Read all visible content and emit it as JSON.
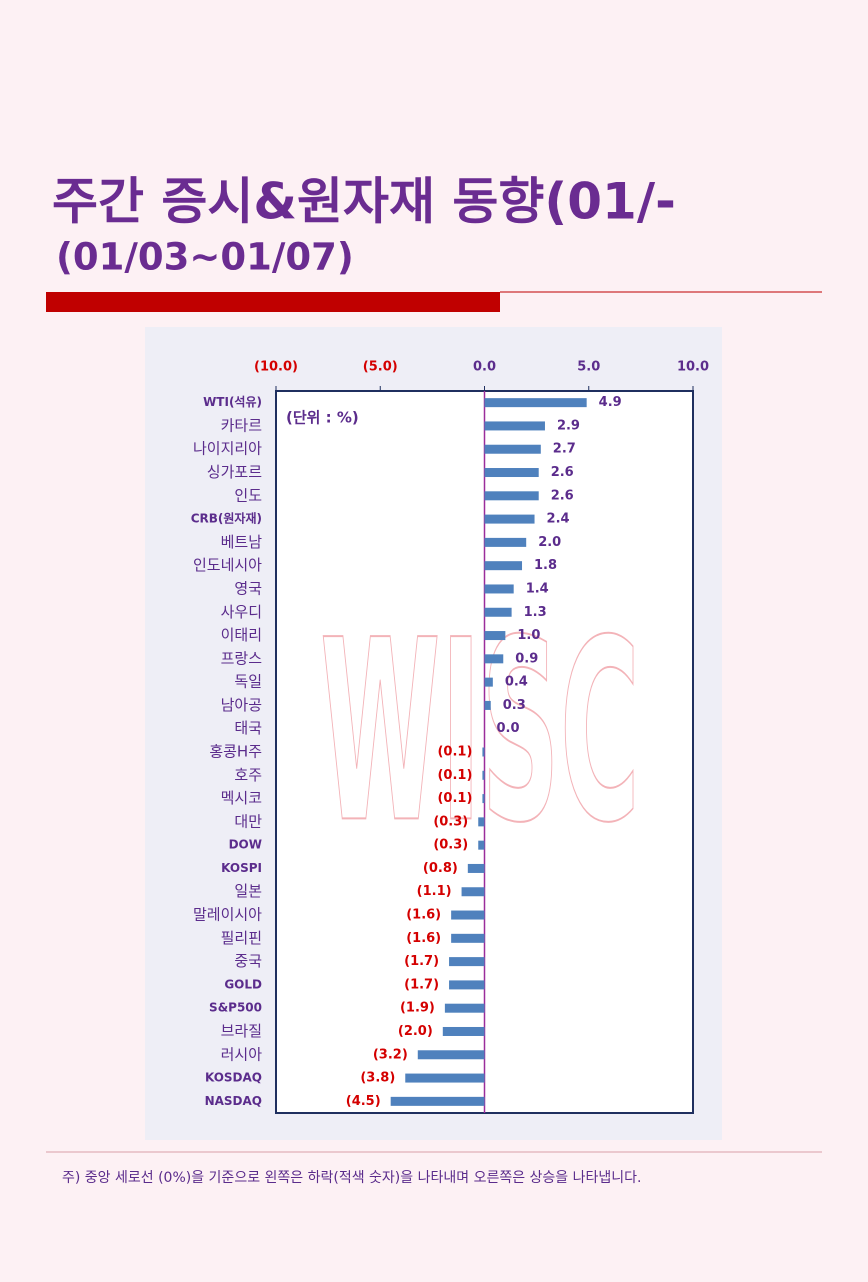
{
  "chart_data": {
    "type": "hbar",
    "title": "주간 증시&원자재 동향(01/-",
    "subtitle": "(01/03~01/07)",
    "unit_label": "(단위 : %)",
    "watermark": "WISC",
    "note": "주) 중앙 세로선 (0%)을 기준으로 왼쪽은 하락(적색 숫자)을 나타내며 오른쪽은 상승을 나타냅니다.",
    "categories": [
      "WTI(석유)",
      "카타르",
      "나이지리아",
      "싱가포르",
      "인도",
      "CRB(원자재)",
      "베트남",
      "인도네시아",
      "영국",
      "사우디",
      "이태리",
      "프랑스",
      "독일",
      "남아공",
      "태국",
      "홍콩H주",
      "호주",
      "멕시코",
      "대만",
      "DOW",
      "KOSPI",
      "일본",
      "말레이시아",
      "필리핀",
      "중국",
      "GOLD",
      "S&P500",
      "브라질",
      "러시아",
      "KOSDAQ",
      "NASDAQ"
    ],
    "values": [
      4.9,
      2.9,
      2.7,
      2.6,
      2.6,
      2.4,
      2.0,
      1.8,
      1.4,
      1.3,
      1.0,
      0.9,
      0.4,
      0.3,
      0.0,
      -0.1,
      -0.1,
      -0.1,
      -0.3,
      -0.3,
      -0.8,
      -1.1,
      -1.6,
      -1.6,
      -1.7,
      -1.7,
      -1.9,
      -2.0,
      -3.2,
      -3.8,
      -4.5
    ],
    "value_labels": [
      "4.9",
      "2.9",
      "2.7",
      "2.6",
      "2.6",
      "2.4",
      "2.0",
      "1.8",
      "1.4",
      "1.3",
      "1.0",
      "0.9",
      "0.4",
      "0.3",
      "0.0",
      "(0.1)",
      "(0.1)",
      "(0.1)",
      "(0.3)",
      "(0.3)",
      "(0.8)",
      "(1.1)",
      "(1.6)",
      "(1.6)",
      "(1.7)",
      "(1.7)",
      "(1.9)",
      "(2.0)",
      "(3.2)",
      "(3.8)",
      "(4.5)"
    ],
    "color": "#4f81bd",
    "positive_label_color": "#5b2c8c",
    "negative_label_color": "#d40000",
    "xlim": [
      -10,
      10
    ],
    "xticks": [
      {
        "value": -10,
        "label": "(10.0)"
      },
      {
        "value": -5,
        "label": "(5.0)"
      },
      {
        "value": 0,
        "label": "0.0"
      },
      {
        "value": 5,
        "label": "5.0"
      },
      {
        "value": 10,
        "label": "10.0"
      }
    ]
  }
}
